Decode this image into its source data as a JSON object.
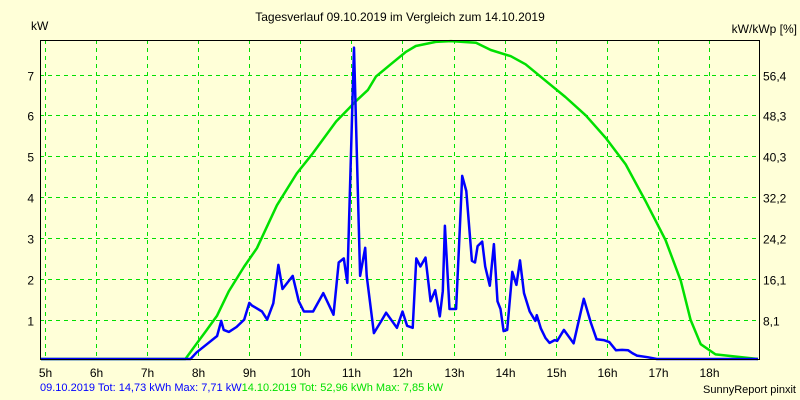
{
  "chart_data": {
    "type": "line",
    "title": "Tagesverlauf 09.10.2019 im Vergleich zum 14.10.2019",
    "ylabel": "kW",
    "ylabel_right": "kW/kWp [%]",
    "xlim": [
      4.9,
      19.0
    ],
    "ylim": [
      0,
      7.85
    ],
    "grid": true,
    "x_ticks": [
      5,
      6,
      7,
      8,
      9,
      10,
      11,
      12,
      13,
      14,
      15,
      16,
      17,
      18
    ],
    "x_tick_labels": [
      "5h",
      "6h",
      "7h",
      "8h",
      "9h",
      "10h",
      "11h",
      "12h",
      "13h",
      "14h",
      "15h",
      "16h",
      "17h",
      "18h"
    ],
    "y_ticks": [
      1,
      2,
      3,
      4,
      5,
      6,
      7
    ],
    "y_tick_labels": [
      "1",
      "2",
      "3",
      "4",
      "5",
      "6",
      "7"
    ],
    "y_right_tick_labels": [
      "8,1",
      "16,1",
      "24,2",
      "32,2",
      "40,3",
      "48,3",
      "56,4"
    ],
    "series": [
      {
        "name": "09.10.2019",
        "color": "#0000FF",
        "x": [
          4.9,
          7.85,
          7.97,
          8.17,
          8.37,
          8.45,
          8.5,
          8.6,
          8.75,
          8.9,
          9.0,
          9.05,
          9.25,
          9.35,
          9.47,
          9.57,
          9.65,
          9.85,
          9.97,
          10.07,
          10.25,
          10.45,
          10.65,
          10.75,
          10.85,
          10.92,
          11.05,
          11.17,
          11.27,
          11.3,
          11.44,
          11.6,
          11.68,
          11.89,
          12.0,
          12.09,
          12.2,
          12.27,
          12.35,
          12.45,
          12.55,
          12.64,
          12.73,
          12.79,
          12.83,
          12.92,
          13.05,
          13.11,
          13.17,
          13.25,
          13.36,
          13.42,
          13.47,
          13.56,
          13.62,
          13.71,
          13.79,
          13.86,
          13.92,
          13.98,
          14.05,
          14.15,
          14.23,
          14.3,
          14.38,
          14.49,
          14.6,
          14.63,
          14.71,
          14.8,
          14.88,
          14.98,
          15.03,
          15.16,
          15.35,
          15.55,
          15.69,
          15.8,
          15.94,
          16.05,
          16.18,
          16.3,
          16.42,
          16.5,
          16.59,
          16.8,
          16.98,
          17.2,
          17.32,
          17.55,
          17.7,
          17.92,
          18.1,
          19.0
        ],
        "values": [
          0,
          0,
          0.2,
          0.4,
          0.6,
          0.97,
          0.75,
          0.7,
          0.82,
          1.0,
          1.41,
          1.35,
          1.2,
          1.0,
          1.4,
          2.34,
          1.75,
          2.07,
          1.45,
          1.2,
          1.2,
          1.65,
          1.12,
          2.4,
          2.5,
          1.9,
          7.66,
          2.07,
          2.76,
          2.07,
          0.67,
          1.0,
          1.17,
          0.8,
          1.2,
          0.85,
          0.8,
          2.5,
          2.3,
          2.52,
          1.45,
          1.72,
          1.08,
          1.7,
          3.3,
          1.26,
          1.26,
          2.9,
          4.52,
          4.15,
          2.44,
          2.4,
          2.8,
          2.91,
          2.3,
          1.83,
          2.85,
          1.45,
          1.26,
          0.72,
          0.75,
          2.17,
          1.85,
          2.45,
          1.65,
          1.2,
          0.97,
          1.11,
          0.78,
          0.55,
          0.43,
          0.5,
          0.48,
          0.75,
          0.42,
          1.51,
          0.92,
          0.52,
          0.5,
          0.45,
          0.25,
          0.26,
          0.25,
          0.18,
          0.12,
          0.08,
          0.0,
          0,
          0,
          0,
          0,
          0,
          0,
          0
        ]
      },
      {
        "name": "14.10.2019",
        "color": "#00E000",
        "x": [
          4.9,
          7.75,
          7.96,
          8.15,
          8.37,
          8.6,
          8.9,
          9.15,
          9.54,
          9.93,
          10.23,
          10.7,
          11.09,
          11.32,
          11.48,
          11.77,
          12.06,
          12.26,
          12.65,
          12.95,
          13.44,
          13.73,
          14.12,
          14.41,
          14.8,
          15.19,
          15.59,
          15.98,
          16.37,
          16.76,
          17.15,
          17.45,
          17.64,
          17.84,
          18.13,
          19.0
        ],
        "values": [
          0,
          0,
          0.4,
          0.72,
          1.1,
          1.7,
          2.3,
          2.75,
          3.8,
          4.58,
          5.05,
          5.85,
          6.35,
          6.62,
          6.95,
          7.25,
          7.55,
          7.7,
          7.8,
          7.82,
          7.78,
          7.6,
          7.45,
          7.25,
          6.85,
          6.45,
          6.0,
          5.45,
          4.8,
          3.9,
          2.95,
          1.95,
          1.0,
          0.4,
          0.15,
          0
        ]
      }
    ],
    "legend_text": [
      "09.10.2019 Tot: 14,73 kWh Max: 7,71 kW",
      "14.10.2019 Tot: 52,96 kWh Max: 7,85 kW"
    ]
  },
  "footer": {
    "series1_summary": "09.10.2019 Tot: 14,73 kWh Max: 7,71 kW",
    "series2_summary": "14.10.2019 Tot: 52,96 kWh Max: 7,85 kW",
    "credit": "SunnyReport pinxit"
  }
}
